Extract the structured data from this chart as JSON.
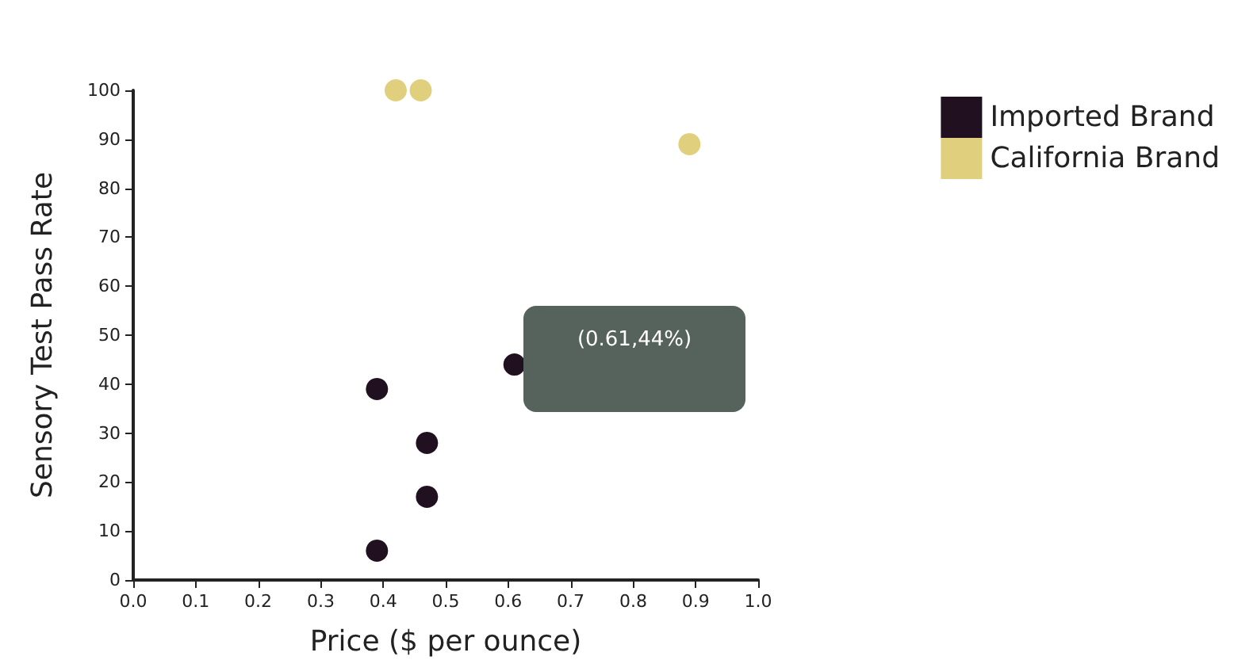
{
  "chart_data": {
    "type": "scatter",
    "xlabel": "Price ($ per ounce)",
    "ylabel": "Sensory Test Pass Rate",
    "series": [
      {
        "name": "Imported Brand",
        "color": "#201020",
        "x": [
          0.39,
          0.47,
          0.47,
          0.39,
          0.61
        ],
        "values": [
          39,
          28,
          17,
          6,
          44
        ]
      },
      {
        "name": "California Brand",
        "color": "#e0cf7c",
        "x": [
          0.42,
          0.46,
          0.89
        ],
        "values": [
          100,
          100,
          89
        ]
      }
    ],
    "xlim": [
      0,
      1
    ],
    "xticks": [
      {
        "value": 0,
        "label": "0.0"
      },
      0.1,
      0.2,
      0.3,
      0.4,
      0.5,
      0.6,
      0.7,
      0.8,
      0.9,
      {
        "value": 1,
        "label": "1.0"
      }
    ],
    "ylim": [
      0,
      100
    ],
    "yticks": [
      0,
      10,
      20,
      30,
      40,
      50,
      60,
      70,
      80,
      90,
      100
    ],
    "grid": false,
    "legend": "top right",
    "marker": "circle",
    "annotations": [
      "(0.61,44%)"
    ]
  }
}
